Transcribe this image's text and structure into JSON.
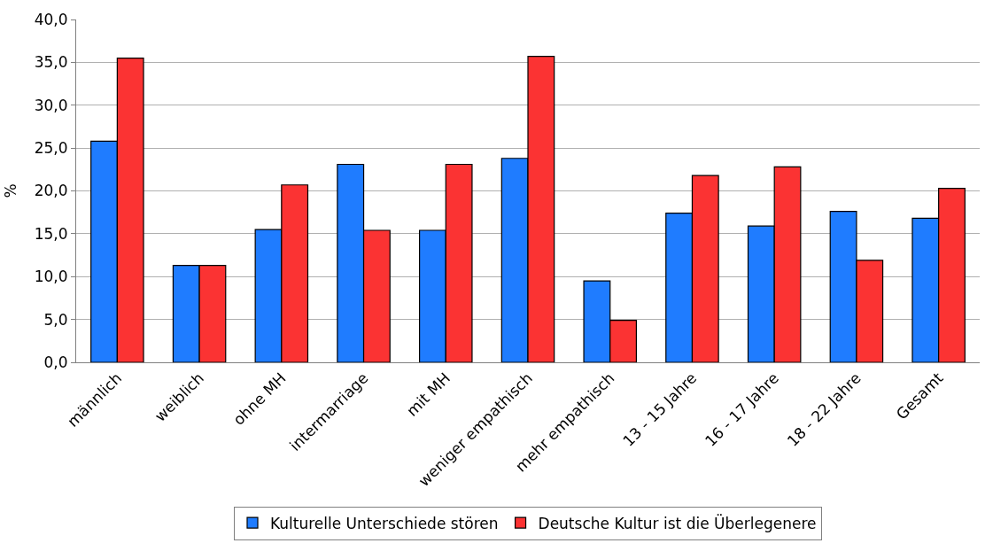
{
  "chart_data": {
    "type": "bar",
    "ylabel": "%",
    "categories": [
      "männlich",
      "weiblich",
      "ohne MH",
      "intermarriage",
      "mit MH",
      "weniger empathisch",
      "mehr empathisch",
      "13 - 15 Jahre",
      "16 - 17 Jahre",
      "18 - 22 Jahre",
      "Gesamt"
    ],
    "series": [
      {
        "name": "Kulturelle Unterschiede stören",
        "color": "#1f7cff",
        "values": [
          25.8,
          11.3,
          15.5,
          23.1,
          15.4,
          23.8,
          9.5,
          17.4,
          15.9,
          17.6,
          16.8
        ]
      },
      {
        "name": "Deutsche Kultur ist die Überlegenere",
        "color": "#fb3333",
        "values": [
          35.5,
          11.3,
          20.7,
          15.4,
          23.1,
          35.7,
          4.9,
          21.8,
          22.8,
          11.9,
          20.3
        ]
      }
    ],
    "ylim": [
      0,
      40
    ],
    "yticks": [
      {
        "value": 0,
        "label": "0,0"
      },
      {
        "value": 5,
        "label": "5,0"
      },
      {
        "value": 10,
        "label": "10,0"
      },
      {
        "value": 15,
        "label": "15,0"
      },
      {
        "value": 20,
        "label": "20,0"
      },
      {
        "value": 25,
        "label": "25,0"
      },
      {
        "value": 30,
        "label": "30,0"
      },
      {
        "value": 35,
        "label": "35,0"
      },
      {
        "value": 40,
        "label": "40,0"
      }
    ],
    "grid": "y",
    "legend": "bottom"
  }
}
